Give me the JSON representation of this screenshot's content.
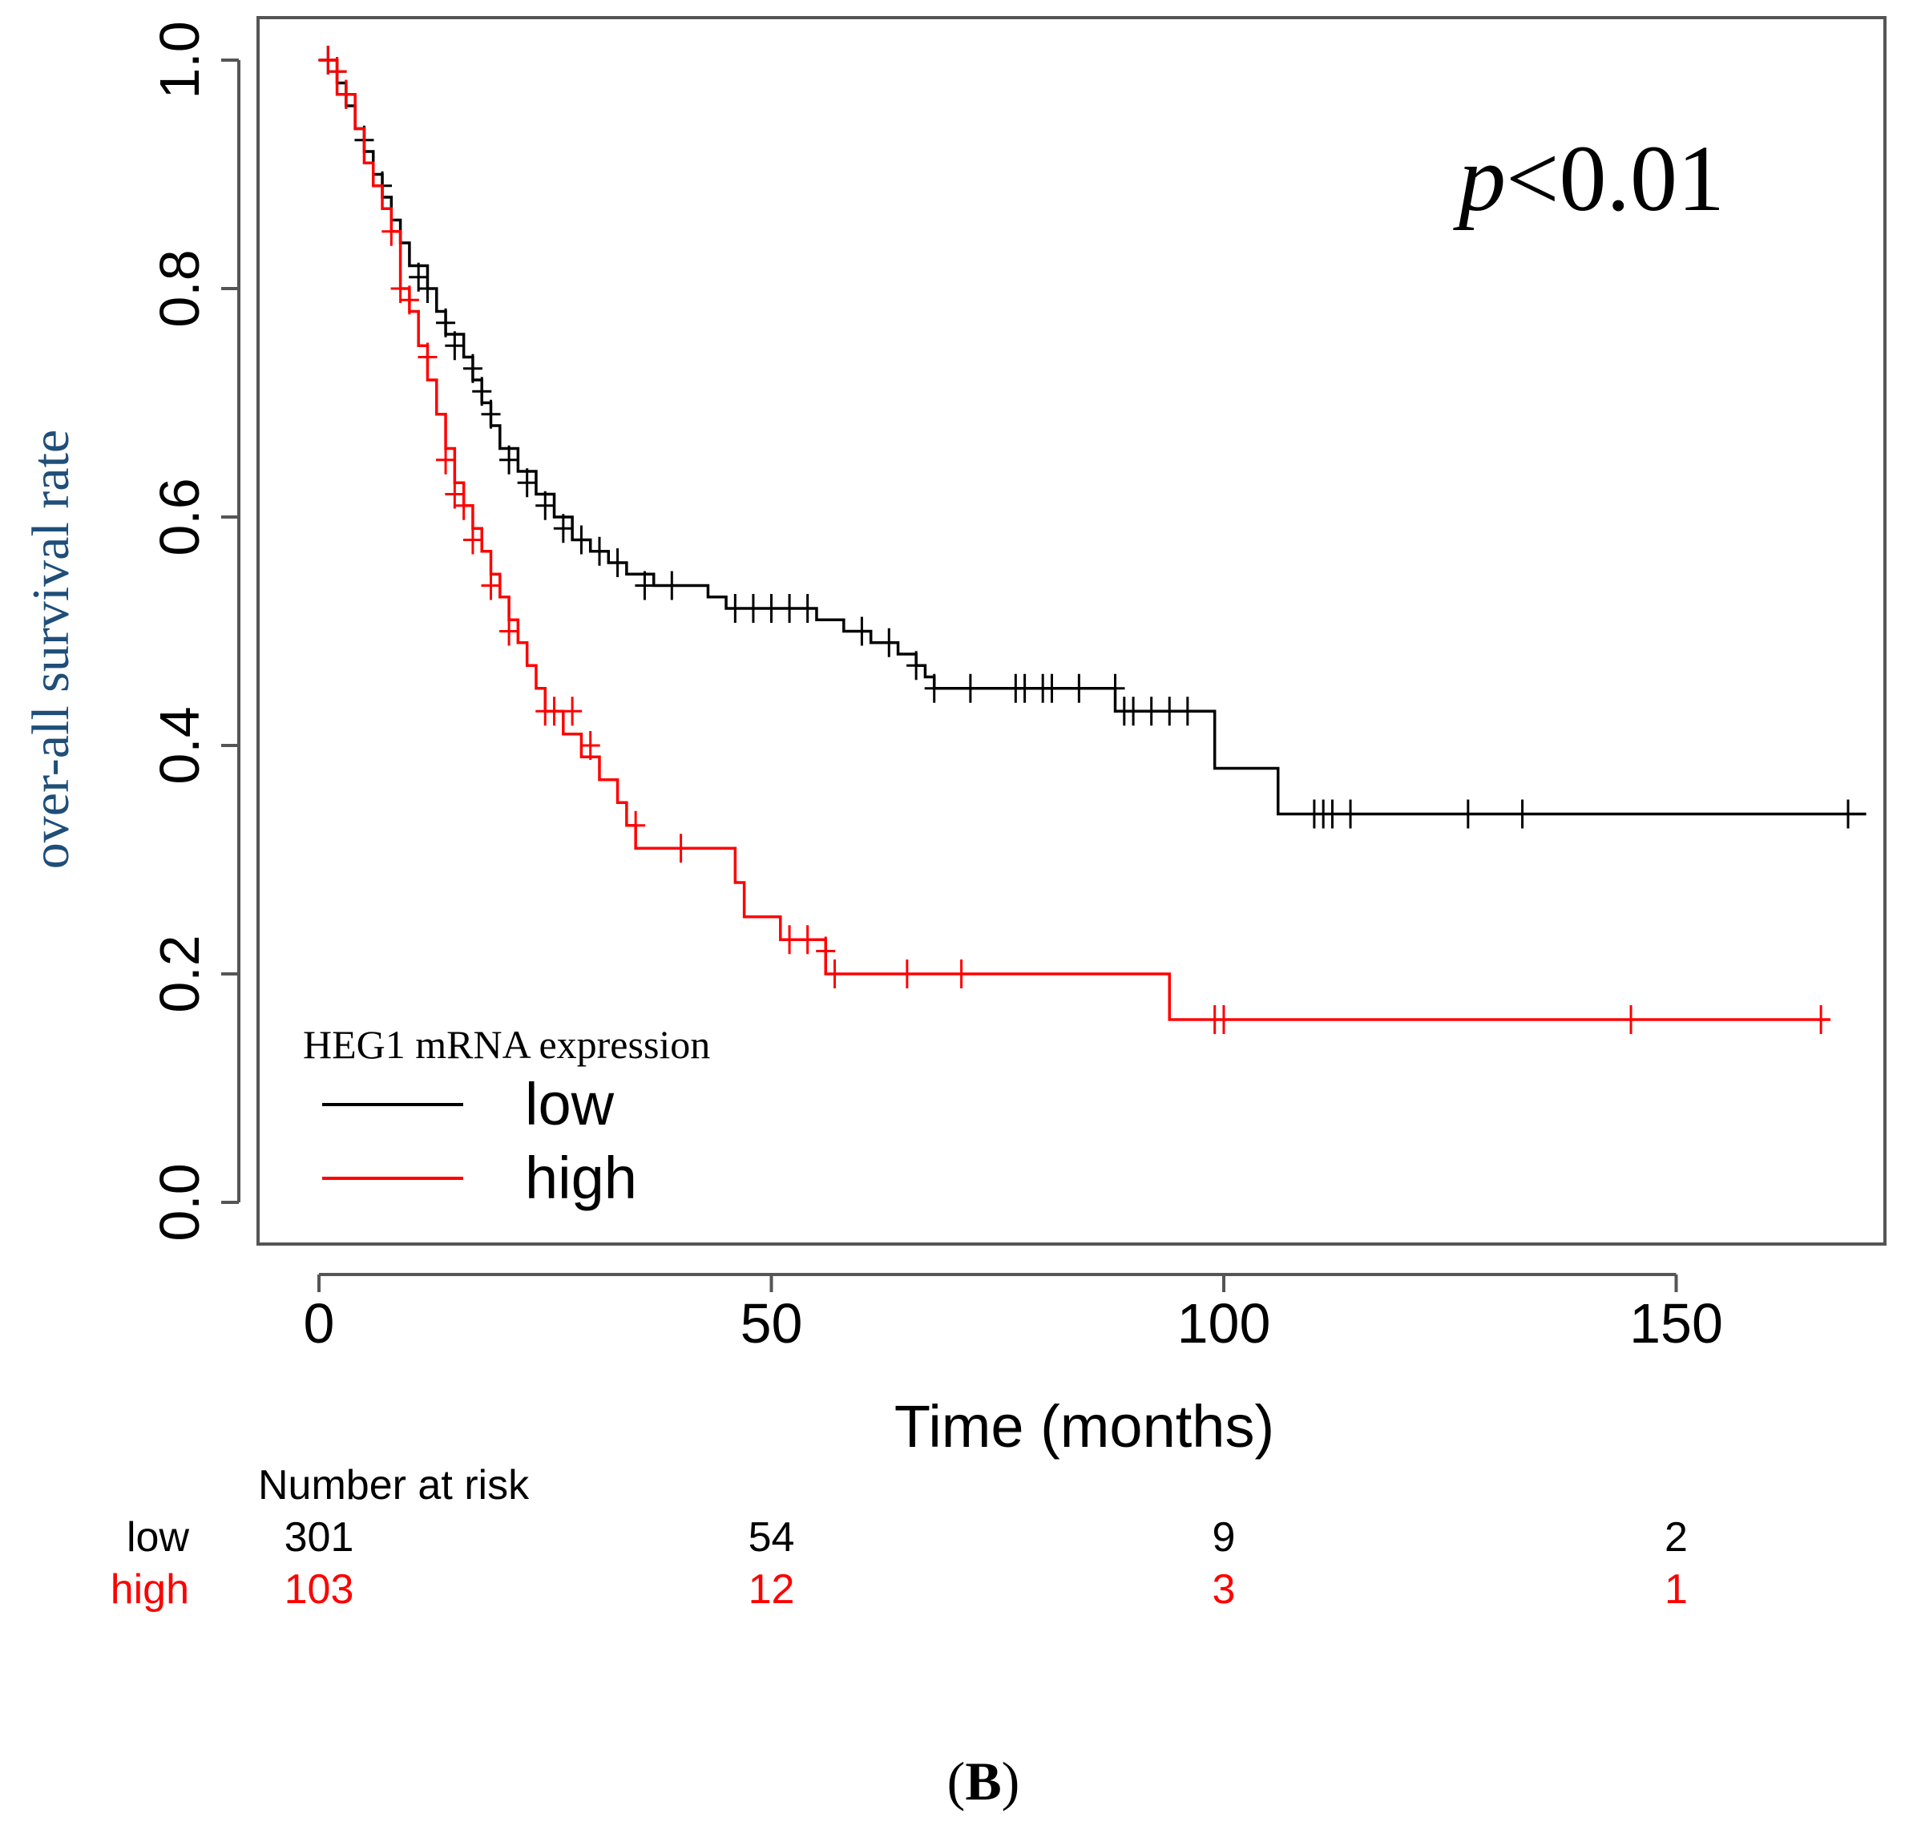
{
  "chart_data": {
    "type": "line",
    "subtype": "kaplan-meier",
    "title": "",
    "xlabel": "Time (months)",
    "ylabel": "over-all survival rate",
    "xlim": [
      0,
      170
    ],
    "ylim": [
      0,
      1
    ],
    "x_ticks": [
      0,
      50,
      100,
      150
    ],
    "y_ticks": [
      0.0,
      0.2,
      0.4,
      0.6,
      0.8,
      1.0
    ],
    "x_tick_labels": [
      "0",
      "50",
      "100",
      "150"
    ],
    "y_tick_labels": [
      "0.0",
      "0.2",
      "0.4",
      "0.6",
      "0.8",
      "1.0"
    ],
    "annotation": {
      "p_symbol": "p",
      "p_rest": "<0.01"
    },
    "legend": {
      "title": "HEG1 mRNA expression",
      "position": "bottom-left",
      "entries": [
        {
          "label": "low",
          "color": "#000000"
        },
        {
          "label": "high",
          "color": "#ff0000"
        }
      ]
    },
    "series": [
      {
        "name": "low",
        "color": "#000000",
        "steps": [
          [
            0,
            1.0
          ],
          [
            2,
            0.98
          ],
          [
            3,
            0.96
          ],
          [
            4,
            0.94
          ],
          [
            5,
            0.92
          ],
          [
            6,
            0.9
          ],
          [
            7,
            0.88
          ],
          [
            8,
            0.86
          ],
          [
            9,
            0.84
          ],
          [
            10,
            0.82
          ],
          [
            12,
            0.8
          ],
          [
            13,
            0.78
          ],
          [
            14,
            0.76
          ],
          [
            16,
            0.74
          ],
          [
            17,
            0.72
          ],
          [
            18,
            0.7
          ],
          [
            19,
            0.68
          ],
          [
            20,
            0.66
          ],
          [
            22,
            0.64
          ],
          [
            24,
            0.62
          ],
          [
            26,
            0.6
          ],
          [
            28,
            0.58
          ],
          [
            30,
            0.57
          ],
          [
            32,
            0.56
          ],
          [
            34,
            0.55
          ],
          [
            37,
            0.54
          ],
          [
            43,
            0.53
          ],
          [
            45,
            0.52
          ],
          [
            55,
            0.51
          ],
          [
            58,
            0.5
          ],
          [
            61,
            0.49
          ],
          [
            64,
            0.48
          ],
          [
            66,
            0.47
          ],
          [
            67,
            0.46
          ],
          [
            68,
            0.45
          ],
          [
            88,
            0.43
          ],
          [
            99,
            0.38
          ],
          [
            106,
            0.34
          ],
          [
            171,
            0.34
          ]
        ],
        "censor": [
          [
            1,
            1.0
          ],
          [
            2,
            0.99
          ],
          [
            3,
            0.97
          ],
          [
            5,
            0.93
          ],
          [
            7,
            0.89
          ],
          [
            11,
            0.81
          ],
          [
            12,
            0.8
          ],
          [
            14,
            0.77
          ],
          [
            15,
            0.75
          ],
          [
            17,
            0.73
          ],
          [
            18,
            0.71
          ],
          [
            19,
            0.69
          ],
          [
            21,
            0.65
          ],
          [
            23,
            0.63
          ],
          [
            25,
            0.61
          ],
          [
            27,
            0.59
          ],
          [
            29,
            0.58
          ],
          [
            31,
            0.57
          ],
          [
            33,
            0.56
          ],
          [
            36,
            0.54
          ],
          [
            39,
            0.54
          ],
          [
            46,
            0.52
          ],
          [
            48,
            0.52
          ],
          [
            50,
            0.52
          ],
          [
            52,
            0.52
          ],
          [
            54,
            0.52
          ],
          [
            60,
            0.5
          ],
          [
            63,
            0.49
          ],
          [
            66,
            0.47
          ],
          [
            68,
            0.45
          ],
          [
            72,
            0.45
          ],
          [
            77,
            0.45
          ],
          [
            78,
            0.45
          ],
          [
            80,
            0.45
          ],
          [
            81,
            0.45
          ],
          [
            84,
            0.45
          ],
          [
            88,
            0.45
          ],
          [
            89,
            0.43
          ],
          [
            90,
            0.43
          ],
          [
            92,
            0.43
          ],
          [
            94,
            0.43
          ],
          [
            96,
            0.43
          ],
          [
            110,
            0.34
          ],
          [
            111,
            0.34
          ],
          [
            112,
            0.34
          ],
          [
            114,
            0.34
          ],
          [
            127,
            0.34
          ],
          [
            133,
            0.34
          ],
          [
            169,
            0.34
          ]
        ]
      },
      {
        "name": "high",
        "color": "#ff0000",
        "steps": [
          [
            0,
            1.0
          ],
          [
            2,
            0.97
          ],
          [
            4,
            0.94
          ],
          [
            5,
            0.91
          ],
          [
            6,
            0.89
          ],
          [
            7,
            0.87
          ],
          [
            8,
            0.85
          ],
          [
            9,
            0.8
          ],
          [
            10,
            0.78
          ],
          [
            11,
            0.75
          ],
          [
            12,
            0.72
          ],
          [
            13,
            0.69
          ],
          [
            14,
            0.66
          ],
          [
            15,
            0.63
          ],
          [
            16,
            0.61
          ],
          [
            17,
            0.59
          ],
          [
            18,
            0.57
          ],
          [
            19,
            0.55
          ],
          [
            20,
            0.53
          ],
          [
            21,
            0.51
          ],
          [
            22,
            0.49
          ],
          [
            23,
            0.47
          ],
          [
            24,
            0.45
          ],
          [
            25,
            0.43
          ],
          [
            27,
            0.41
          ],
          [
            29,
            0.39
          ],
          [
            31,
            0.37
          ],
          [
            33,
            0.35
          ],
          [
            34,
            0.33
          ],
          [
            35,
            0.31
          ],
          [
            46,
            0.28
          ],
          [
            47,
            0.25
          ],
          [
            51,
            0.23
          ],
          [
            56,
            0.2
          ],
          [
            94,
            0.16
          ],
          [
            167,
            0.16
          ]
        ],
        "censor": [
          [
            1,
            1.0
          ],
          [
            2,
            0.99
          ],
          [
            3,
            0.97
          ],
          [
            8,
            0.85
          ],
          [
            9,
            0.8
          ],
          [
            10,
            0.79
          ],
          [
            12,
            0.74
          ],
          [
            14,
            0.65
          ],
          [
            15,
            0.62
          ],
          [
            16,
            0.61
          ],
          [
            17,
            0.58
          ],
          [
            19,
            0.54
          ],
          [
            21,
            0.5
          ],
          [
            25,
            0.43
          ],
          [
            26,
            0.43
          ],
          [
            28,
            0.43
          ],
          [
            30,
            0.4
          ],
          [
            35,
            0.33
          ],
          [
            40,
            0.31
          ],
          [
            52,
            0.23
          ],
          [
            54,
            0.23
          ],
          [
            56,
            0.22
          ],
          [
            57,
            0.2
          ],
          [
            65,
            0.2
          ],
          [
            71,
            0.2
          ],
          [
            99,
            0.16
          ],
          [
            100,
            0.16
          ],
          [
            145,
            0.16
          ],
          [
            166,
            0.16
          ]
        ]
      }
    ],
    "risk_table": {
      "title": "Number at risk",
      "times": [
        0,
        50,
        100,
        150
      ],
      "rows": [
        {
          "name": "low",
          "color": "#000000",
          "counts": [
            "301",
            "54",
            "9",
            "2"
          ]
        },
        {
          "name": "high",
          "color": "#ff0000",
          "counts": [
            "103",
            "12",
            "3",
            "1"
          ]
        }
      ]
    }
  },
  "caption": {
    "open": "(",
    "letter": "B",
    "close": ")"
  }
}
